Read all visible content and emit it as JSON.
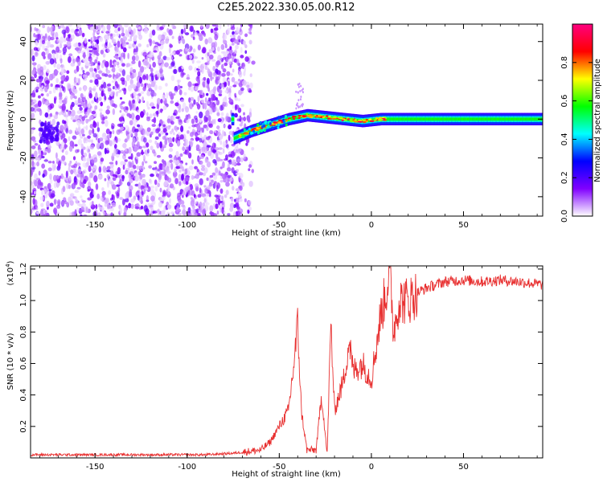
{
  "title": "C2E5.2022.330.05.00.R12",
  "chart_data": [
    {
      "type": "heatmap",
      "xlabel": "Height of straight line (km)",
      "ylabel": "Frequency (Hz)",
      "xlim": [
        -185,
        93
      ],
      "ylim": [
        -50,
        49
      ],
      "xticks": [
        -150,
        -100,
        -50,
        0,
        50
      ],
      "yticks": [
        -40,
        -20,
        0,
        20,
        40
      ],
      "noise_region_x": [
        -185,
        -70
      ],
      "ridge": {
        "x": [
          -75,
          -65,
          -55,
          -45,
          -35,
          -25,
          -15,
          -5,
          5,
          20,
          40,
          60,
          80,
          93
        ],
        "frequency": [
          -10,
          -6,
          -3,
          0,
          2,
          1,
          0,
          -1,
          0,
          0,
          0,
          0,
          0,
          0
        ]
      },
      "colorbar": {
        "label": "Normalized spectral amplitude",
        "range": [
          0.0,
          1.0
        ],
        "ticks": [
          0.0,
          0.2,
          0.4,
          0.6,
          0.8
        ],
        "colors": [
          "#ffffff",
          "#8000ff",
          "#0000ff",
          "#00ffff",
          "#00ff00",
          "#ffff00",
          "#ff0000",
          "#ff0080"
        ]
      }
    },
    {
      "type": "line",
      "xlabel": "Height of straight line (km)",
      "ylabel": "SNR (10 * v/v)",
      "y_multiplier": "(x10",
      "y_multiplier_exp": "4",
      "xlim": [
        -185,
        93
      ],
      "ylim": [
        0,
        1.22
      ],
      "xticks": [
        -150,
        -100,
        -50,
        0,
        50
      ],
      "yticks": [
        0.2,
        0.4,
        0.6,
        0.8,
        1.0,
        1.2
      ],
      "color": "#e83030",
      "series": [
        {
          "x": [
            -185,
            -160,
            -120,
            -90,
            -75,
            -60,
            -55,
            -50,
            -45,
            -42,
            -40,
            -38,
            -35,
            -30,
            -27,
            -24,
            -22,
            -20,
            -15,
            -12,
            -10,
            -5,
            0,
            5,
            8,
            10,
            12,
            15,
            20,
            25,
            30,
            35,
            40,
            50,
            60,
            70,
            80,
            93
          ],
          "y": [
            0.02,
            0.02,
            0.02,
            0.02,
            0.03,
            0.05,
            0.1,
            0.2,
            0.3,
            0.6,
            0.85,
            0.3,
            0.05,
            0.05,
            0.4,
            0.02,
            0.85,
            0.3,
            0.5,
            0.75,
            0.55,
            0.6,
            0.5,
            0.9,
            1.05,
            1.2,
            0.8,
            1.0,
            1.0,
            1.05,
            1.08,
            1.1,
            1.12,
            1.13,
            1.12,
            1.13,
            1.12,
            1.1
          ]
        }
      ]
    }
  ]
}
